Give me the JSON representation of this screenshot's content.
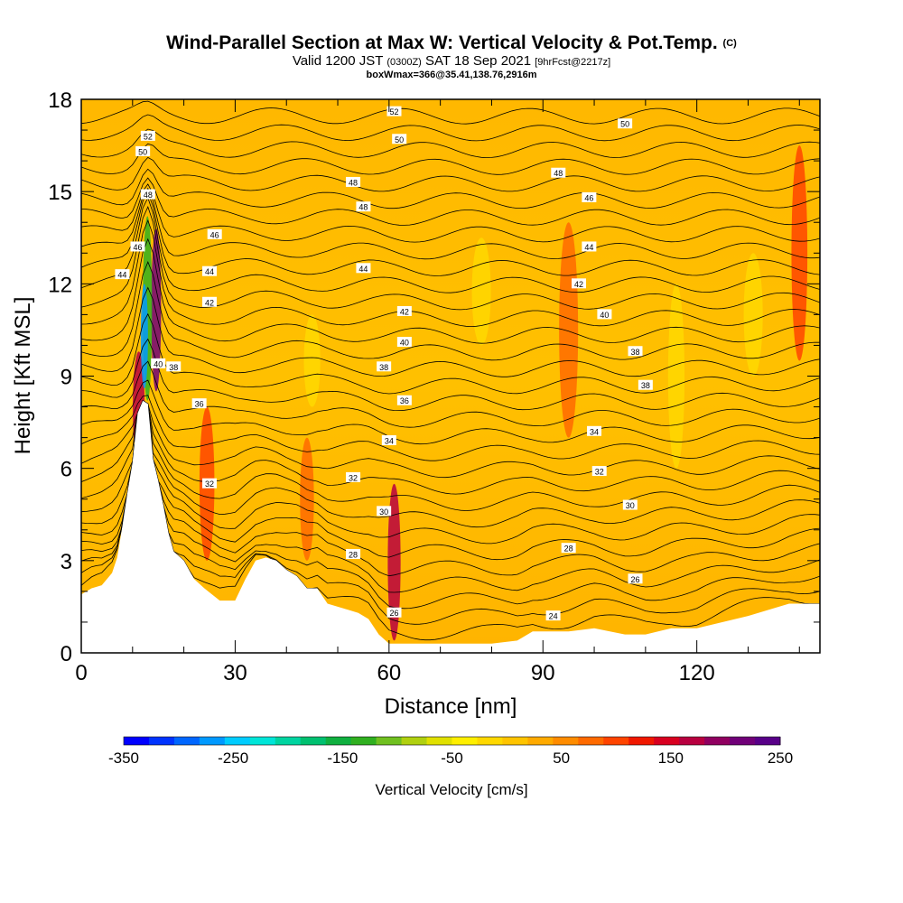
{
  "chart_data": {
    "type": "heatmap",
    "title_main": "Wind-Parallel Section at Max W: Vertical Velocity & Pot.Temp.",
    "title_suffix": "(C)",
    "subtitle_valid": "Valid 1200 JST",
    "subtitle_utc": "(0300Z)",
    "subtitle_date": "SAT 18 Sep 2021",
    "subtitle_fcst": "[9hrFcst@2217z]",
    "subtitle_box": "boxWmax=366@35.41,138.76,2916m",
    "xlabel": "Distance [nm]",
    "ylabel": "Height [Kft MSL]",
    "xlim": [
      0,
      144
    ],
    "ylim": [
      0,
      18
    ],
    "xticks": [
      "0",
      "30",
      "60",
      "90",
      "120"
    ],
    "yticks": [
      "0",
      "3",
      "6",
      "9",
      "12",
      "15",
      "18"
    ],
    "colorbar": {
      "label": "Vertical Velocity [cm/s]",
      "tick_labels": [
        "-350",
        "-250",
        "-150",
        "-50",
        "50",
        "150",
        "250"
      ],
      "min": -350,
      "max": 250,
      "colors": [
        "#0000ff",
        "#0033ff",
        "#0066ff",
        "#0099ff",
        "#00ccff",
        "#00e5d8",
        "#00d4a0",
        "#00c070",
        "#10b040",
        "#30b020",
        "#70c020",
        "#b0d010",
        "#e0e000",
        "#ffef00",
        "#ffd800",
        "#ffc400",
        "#ffaa00",
        "#ff8c00",
        "#ff6a00",
        "#ff4400",
        "#f01800",
        "#d80020",
        "#b80040",
        "#900060",
        "#700078",
        "#580088"
      ]
    },
    "terrain_kft": [
      [
        0,
        1.9
      ],
      [
        2,
        2.1
      ],
      [
        4,
        2.2
      ],
      [
        6,
        2.6
      ],
      [
        7,
        3.1
      ],
      [
        8,
        4.1
      ],
      [
        9,
        5.2
      ],
      [
        10,
        6.2
      ],
      [
        11,
        7.8
      ],
      [
        12,
        8.2
      ],
      [
        13,
        8.1
      ],
      [
        14,
        6.3
      ],
      [
        15,
        5.6
      ],
      [
        16,
        4.8
      ],
      [
        17,
        3.9
      ],
      [
        18,
        3.3
      ],
      [
        20,
        3.0
      ],
      [
        22,
        2.4
      ],
      [
        24,
        2.1
      ],
      [
        27,
        1.7
      ],
      [
        30,
        1.7
      ],
      [
        32,
        2.4
      ],
      [
        34,
        3.0
      ],
      [
        36,
        3.1
      ],
      [
        38,
        3.0
      ],
      [
        40,
        2.7
      ],
      [
        42,
        2.5
      ],
      [
        44,
        2.1
      ],
      [
        46,
        2.1
      ],
      [
        48,
        1.6
      ],
      [
        50,
        1.5
      ],
      [
        52,
        1.4
      ],
      [
        54,
        1.3
      ],
      [
        56,
        1.1
      ],
      [
        58,
        0.6
      ],
      [
        60,
        0.3
      ],
      [
        64,
        0.3
      ],
      [
        70,
        0.3
      ],
      [
        80,
        0.3
      ],
      [
        85,
        0.4
      ],
      [
        88,
        0.7
      ],
      [
        95,
        0.7
      ],
      [
        100,
        0.8
      ],
      [
        106,
        0.6
      ],
      [
        110,
        0.6
      ],
      [
        115,
        0.8
      ],
      [
        120,
        0.8
      ],
      [
        130,
        1.2
      ],
      [
        138,
        1.6
      ],
      [
        144,
        1.6
      ]
    ],
    "theta_contour_labels": [
      {
        "text": "52",
        "x": 61,
        "y": 17.6
      },
      {
        "text": "50",
        "x": 106,
        "y": 17.2
      },
      {
        "text": "52",
        "x": 13,
        "y": 16.8
      },
      {
        "text": "50",
        "x": 62,
        "y": 16.7
      },
      {
        "text": "50",
        "x": 12,
        "y": 16.3
      },
      {
        "text": "48",
        "x": 53,
        "y": 15.3
      },
      {
        "text": "48",
        "x": 93,
        "y": 15.6
      },
      {
        "text": "48",
        "x": 13,
        "y": 14.9
      },
      {
        "text": "48",
        "x": 55,
        "y": 14.5
      },
      {
        "text": "46",
        "x": 99,
        "y": 14.8
      },
      {
        "text": "46",
        "x": 26,
        "y": 13.6
      },
      {
        "text": "46",
        "x": 11,
        "y": 13.2
      },
      {
        "text": "44",
        "x": 99,
        "y": 13.2
      },
      {
        "text": "44",
        "x": 55,
        "y": 12.5
      },
      {
        "text": "44",
        "x": 8,
        "y": 12.3
      },
      {
        "text": "44",
        "x": 25,
        "y": 12.4
      },
      {
        "text": "42",
        "x": 97,
        "y": 12.0
      },
      {
        "text": "42",
        "x": 25,
        "y": 11.4
      },
      {
        "text": "42",
        "x": 63,
        "y": 11.1
      },
      {
        "text": "40",
        "x": 102,
        "y": 11.0
      },
      {
        "text": "40",
        "x": 63,
        "y": 10.1
      },
      {
        "text": "38",
        "x": 108,
        "y": 9.8
      },
      {
        "text": "40",
        "x": 15,
        "y": 9.4
      },
      {
        "text": "38",
        "x": 18,
        "y": 9.3
      },
      {
        "text": "38",
        "x": 59,
        "y": 9.3
      },
      {
        "text": "38",
        "x": 110,
        "y": 8.7
      },
      {
        "text": "36",
        "x": 23,
        "y": 8.1
      },
      {
        "text": "36",
        "x": 63,
        "y": 8.2
      },
      {
        "text": "34",
        "x": 100,
        "y": 7.2
      },
      {
        "text": "34",
        "x": 60,
        "y": 6.9
      },
      {
        "text": "32",
        "x": 101,
        "y": 5.9
      },
      {
        "text": "32",
        "x": 25,
        "y": 5.5
      },
      {
        "text": "32",
        "x": 53,
        "y": 5.7
      },
      {
        "text": "30",
        "x": 107,
        "y": 4.8
      },
      {
        "text": "30",
        "x": 59,
        "y": 4.6
      },
      {
        "text": "28",
        "x": 95,
        "y": 3.4
      },
      {
        "text": "28",
        "x": 53,
        "y": 3.2
      },
      {
        "text": "26",
        "x": 108,
        "y": 2.4
      },
      {
        "text": "26",
        "x": 61,
        "y": 1.3
      },
      {
        "text": "24",
        "x": 92,
        "y": 1.2
      }
    ]
  }
}
